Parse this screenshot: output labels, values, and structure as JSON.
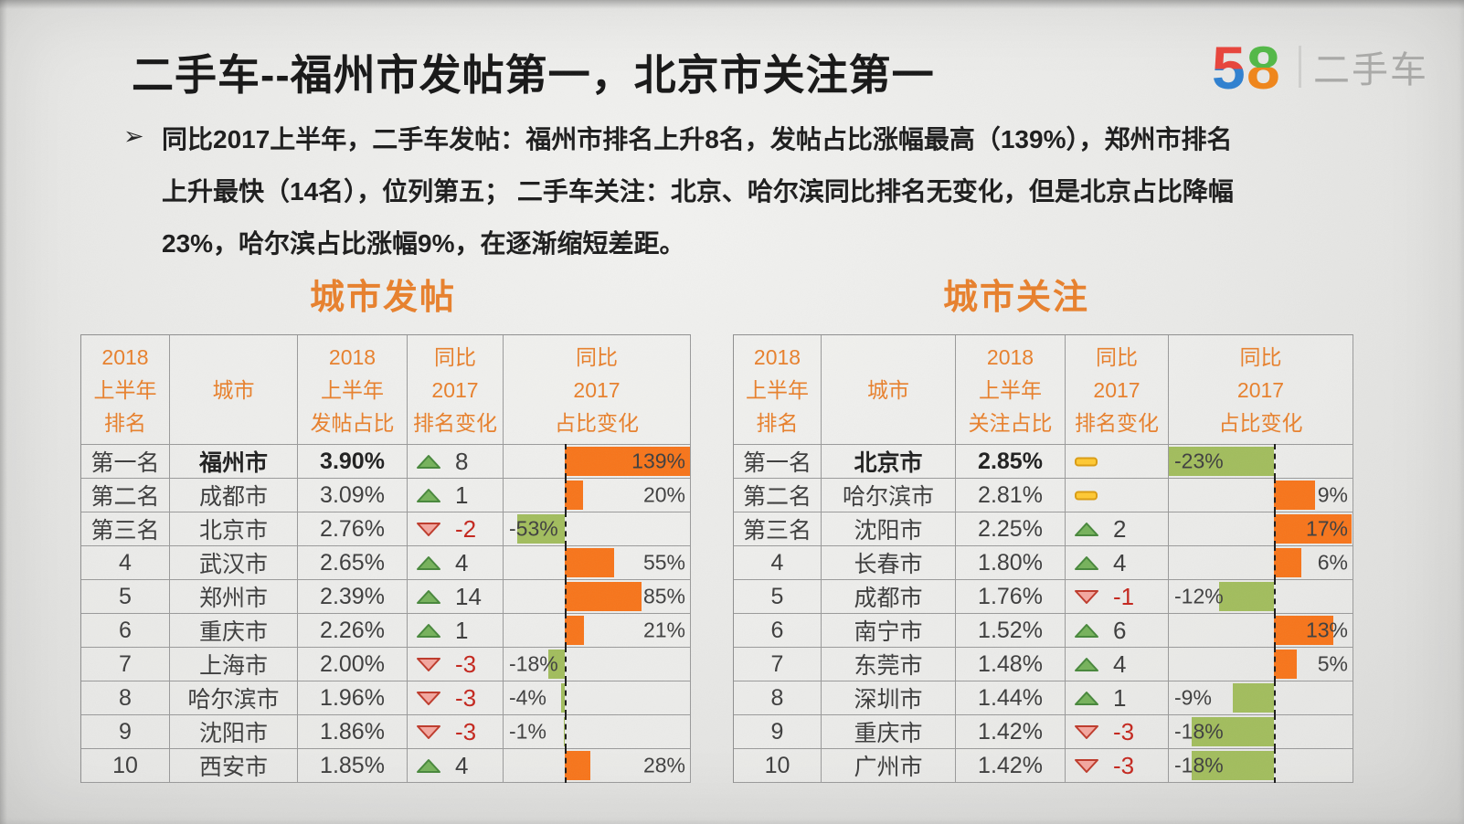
{
  "header": {
    "title": "二手车--福州市发帖第一，北京市关注第一",
    "logo_number": "58",
    "logo_text": "二手车"
  },
  "intro": {
    "bullet": "➢",
    "lines": [
      "同比2017上半年，二手车发帖：福州市排名上升8名，发帖占比涨幅最高（139%），郑州市排名",
      "上升最快（14名），位列第五；  二手车关注：北京、哈尔滨同比排名无变化，但是北京占比降幅",
      "23%，哈尔滨占比涨幅9%，在逐渐缩短差距。"
    ]
  },
  "colors": {
    "accent_orange": "#E8802C",
    "bar_positive_orange": "#F7751B",
    "bar_negative_green": "#A2BD5D",
    "rank_down_red": "#C4261D",
    "logo_red": "#E8433A",
    "logo_blue": "#2E80D0",
    "logo_green": "#52B846",
    "logo_orange": "#F08519"
  },
  "tables": [
    {
      "title": "城市发帖",
      "headers": [
        "2018\n上半年\n排名",
        "城市",
        "2018\n上半年\n发帖占比",
        "同比\n2017\n排名变化",
        "同比\n2017\n占比变化"
      ],
      "rows": [
        {
          "rank": "第一名",
          "city": "福州市",
          "share": "3.90%",
          "trend": "up",
          "change": "8",
          "bar_value": 139,
          "bar_label": "139%",
          "bold": true
        },
        {
          "rank": "第二名",
          "city": "成都市",
          "share": "3.09%",
          "trend": "up",
          "change": "1",
          "bar_value": 20,
          "bar_label": "20%",
          "bold": false
        },
        {
          "rank": "第三名",
          "city": "北京市",
          "share": "2.76%",
          "trend": "down",
          "change": "-2",
          "bar_value": -53,
          "bar_label": "-53%",
          "bold": false
        },
        {
          "rank": "4",
          "city": "武汉市",
          "share": "2.65%",
          "trend": "up",
          "change": "4",
          "bar_value": 55,
          "bar_label": "55%",
          "bold": false
        },
        {
          "rank": "5",
          "city": "郑州市",
          "share": "2.39%",
          "trend": "up",
          "change": "14",
          "bar_value": 85,
          "bar_label": "85%",
          "bold": false
        },
        {
          "rank": "6",
          "city": "重庆市",
          "share": "2.26%",
          "trend": "up",
          "change": "1",
          "bar_value": 21,
          "bar_label": "21%",
          "bold": false
        },
        {
          "rank": "7",
          "city": "上海市",
          "share": "2.00%",
          "trend": "down",
          "change": "-3",
          "bar_value": -18,
          "bar_label": "-18%",
          "bold": false
        },
        {
          "rank": "8",
          "city": "哈尔滨市",
          "share": "1.96%",
          "trend": "down",
          "change": "-3",
          "bar_value": -4,
          "bar_label": "-4%",
          "bold": false
        },
        {
          "rank": "9",
          "city": "沈阳市",
          "share": "1.86%",
          "trend": "down",
          "change": "-3",
          "bar_value": -1,
          "bar_label": "-1%",
          "bold": false
        },
        {
          "rank": "10",
          "city": "西安市",
          "share": "1.85%",
          "trend": "up",
          "change": "4",
          "bar_value": 28,
          "bar_label": "28%",
          "bold": false
        }
      ]
    },
    {
      "title": "城市关注",
      "headers": [
        "2018\n上半年\n排名",
        "城市",
        "2018\n上半年\n关注占比",
        "同比\n2017\n排名变化",
        "同比\n2017\n占比变化"
      ],
      "rows": [
        {
          "rank": "第一名",
          "city": "北京市",
          "share": "2.85%",
          "trend": "flat",
          "change": "",
          "bar_value": -23,
          "bar_label": "-23%",
          "bold": true
        },
        {
          "rank": "第二名",
          "city": "哈尔滨市",
          "share": "2.81%",
          "trend": "flat",
          "change": "",
          "bar_value": 9,
          "bar_label": "9%",
          "bold": false
        },
        {
          "rank": "第三名",
          "city": "沈阳市",
          "share": "2.25%",
          "trend": "up",
          "change": "2",
          "bar_value": 17,
          "bar_label": "17%",
          "bold": false
        },
        {
          "rank": "4",
          "city": "长春市",
          "share": "1.80%",
          "trend": "up",
          "change": "4",
          "bar_value": 6,
          "bar_label": "6%",
          "bold": false
        },
        {
          "rank": "5",
          "city": "成都市",
          "share": "1.76%",
          "trend": "down",
          "change": "-1",
          "bar_value": -12,
          "bar_label": "-12%",
          "bold": false
        },
        {
          "rank": "6",
          "city": "南宁市",
          "share": "1.52%",
          "trend": "up",
          "change": "6",
          "bar_value": 13,
          "bar_label": "13%",
          "bold": false
        },
        {
          "rank": "7",
          "city": "东莞市",
          "share": "1.48%",
          "trend": "up",
          "change": "4",
          "bar_value": 5,
          "bar_label": "5%",
          "bold": false
        },
        {
          "rank": "8",
          "city": "深圳市",
          "share": "1.44%",
          "trend": "up",
          "change": "1",
          "bar_value": -9,
          "bar_label": "-9%",
          "bold": false
        },
        {
          "rank": "9",
          "city": "重庆市",
          "share": "1.42%",
          "trend": "down",
          "change": "-3",
          "bar_value": -18,
          "bar_label": "-18%",
          "bold": false
        },
        {
          "rank": "10",
          "city": "广州市",
          "share": "1.42%",
          "trend": "down",
          "change": "-3",
          "bar_value": -18,
          "bar_label": "-18%",
          "bold": false
        }
      ]
    }
  ],
  "chart_data": [
    {
      "type": "bar",
      "title": "城市发帖 同比2017占比变化",
      "categories": [
        "福州市",
        "成都市",
        "北京市",
        "武汉市",
        "郑州市",
        "重庆市",
        "上海市",
        "哈尔滨市",
        "沈阳市",
        "西安市"
      ],
      "values": [
        139,
        20,
        -53,
        55,
        85,
        21,
        -18,
        -4,
        -1,
        28
      ],
      "unit": "%",
      "orientation": "horizontal",
      "xlim": [
        -53,
        139
      ],
      "positive_color": "#F7751B",
      "negative_color": "#A2BD5D"
    },
    {
      "type": "bar",
      "title": "城市关注 同比2017占比变化",
      "categories": [
        "北京市",
        "哈尔滨市",
        "沈阳市",
        "长春市",
        "成都市",
        "南宁市",
        "东莞市",
        "深圳市",
        "重庆市",
        "广州市"
      ],
      "values": [
        -23,
        9,
        17,
        6,
        -12,
        13,
        5,
        -9,
        -18,
        -18
      ],
      "unit": "%",
      "orientation": "horizontal",
      "xlim": [
        -23,
        17
      ],
      "positive_color": "#F7751B",
      "negative_color": "#A2BD5D"
    }
  ]
}
